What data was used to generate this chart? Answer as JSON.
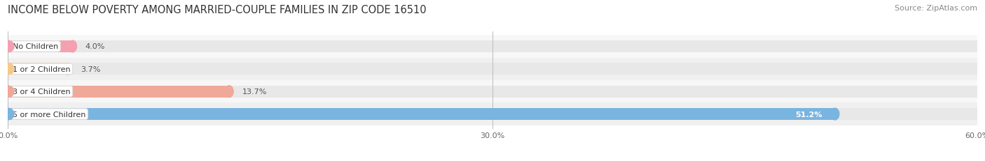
{
  "title": "INCOME BELOW POVERTY AMONG MARRIED-COUPLE FAMILIES IN ZIP CODE 16510",
  "source": "Source: ZipAtlas.com",
  "categories": [
    "No Children",
    "1 or 2 Children",
    "3 or 4 Children",
    "5 or more Children"
  ],
  "values": [
    4.0,
    3.7,
    13.7,
    51.2
  ],
  "bar_colors": [
    "#f4a0b0",
    "#f5c98a",
    "#f0a898",
    "#7ab4e0"
  ],
  "row_bg_colors": [
    "#f7f7f7",
    "#f0f0f0",
    "#f7f7f7",
    "#f0f0f0"
  ],
  "bar_bg_color": "#e8e8e8",
  "xlim": [
    0,
    60
  ],
  "xticks": [
    0.0,
    30.0,
    60.0
  ],
  "xtick_labels": [
    "0.0%",
    "30.0%",
    "60.0%"
  ],
  "title_fontsize": 10.5,
  "source_fontsize": 8,
  "bar_height": 0.52,
  "background_color": "#ffffff",
  "label_fontsize": 8,
  "value_fontsize": 8
}
